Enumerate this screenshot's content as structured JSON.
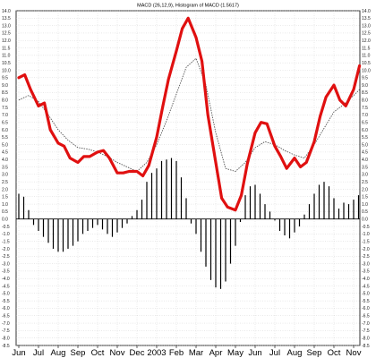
{
  "chart_data": {
    "type": "line",
    "title": "MACD (26,12,9), Histogram of MACD (1.5617)",
    "x_labels": [
      "Jun",
      "Jul",
      "Aug",
      "Sep",
      "Oct",
      "Nov",
      "Dec",
      "2003",
      "Feb",
      "Mar",
      "Apr",
      "May",
      "Jun",
      "Jul",
      "Aug",
      "Sep",
      "Oct",
      "Nov"
    ],
    "y_ticks": [
      "14.0",
      "13.5",
      "13.0",
      "12.5",
      "12.0",
      "11.5",
      "11.0",
      "10.5",
      "10.0",
      "9.5",
      "9.0",
      "8.5",
      "8.0",
      "7.5",
      "7.0",
      "6.5",
      "6.0",
      "5.5",
      "5.0",
      "4.5",
      "4.0",
      "3.5",
      "3.0",
      "2.5",
      "2.0",
      "1.5",
      "1.0",
      "0.5",
      "0.0",
      "-0.5",
      "-1.0",
      "-1.5",
      "-2.0",
      "-2.5",
      "-3.0",
      "-3.5",
      "-4.0",
      "-4.5",
      "-5.0",
      "-5.5",
      "-6.0",
      "-6.5",
      "-7.0",
      "-7.5",
      "-8.0",
      "-8.5"
    ],
    "ylim": [
      -8.5,
      14.0
    ],
    "grid": true,
    "colors": {
      "macd": "#e01010",
      "signal": "#555555",
      "histogram": "#000000",
      "grid": "#c8c8c8"
    },
    "series": [
      {
        "style": "thick-red-line",
        "x": [
          0,
          0.3,
          0.6,
          1,
          1.3,
          1.6,
          2,
          2.3,
          2.6,
          3,
          3.3,
          3.6,
          4,
          4.3,
          4.6,
          5,
          5.3,
          5.6,
          6,
          6.3,
          6.6,
          7,
          7.3,
          7.6,
          8,
          8.3,
          8.6,
          9,
          9.3,
          9.6,
          10,
          10.3,
          10.6,
          11,
          11.3,
          11.6,
          12,
          12.3,
          12.6,
          13,
          13.3,
          13.6,
          14,
          14.3,
          14.6,
          15,
          15.3,
          15.6,
          16,
          16.3,
          16.6,
          17,
          17.3
        ],
        "values": [
          9.5,
          9.7,
          8.7,
          7.6,
          7.8,
          6.0,
          5.1,
          4.9,
          4.1,
          3.8,
          4.2,
          4.2,
          4.5,
          4.6,
          4.1,
          3.1,
          3.1,
          3.2,
          3.2,
          2.9,
          3.6,
          5.5,
          7.5,
          9.4,
          11.3,
          12.8,
          13.5,
          12.2,
          10.6,
          7.0,
          3.8,
          1.4,
          0.8,
          0.6,
          1.6,
          3.7,
          5.8,
          6.5,
          6.4,
          4.9,
          4.2,
          3.4,
          4.1,
          3.5,
          3.8,
          5.2,
          6.9,
          8.2,
          9.0,
          8.0,
          7.6,
          8.7,
          10.3
        ]
      },
      {
        "style": "dotted-grey-line",
        "x": [
          0,
          0.5,
          1,
          1.5,
          2,
          2.5,
          3,
          3.5,
          4,
          4.5,
          5,
          5.5,
          6,
          6.5,
          7,
          7.5,
          8,
          8.5,
          9,
          9.5,
          10,
          10.5,
          11,
          11.5,
          12,
          12.5,
          13,
          13.5,
          14,
          14.5,
          15,
          15.5,
          16,
          16.5,
          17,
          17.3
        ],
        "values": [
          8.0,
          8.3,
          7.9,
          7.0,
          6.0,
          5.3,
          4.8,
          4.7,
          4.5,
          4.2,
          3.8,
          3.5,
          3.2,
          3.8,
          5.0,
          6.6,
          8.4,
          10.2,
          10.8,
          9.0,
          5.8,
          3.4,
          3.2,
          3.8,
          4.8,
          5.2,
          5.0,
          4.6,
          4.3,
          4.1,
          5.0,
          6.1,
          7.2,
          7.7,
          8.3,
          8.7
        ]
      },
      {
        "style": "histogram-bars",
        "x": [
          0,
          0.25,
          0.5,
          0.75,
          1,
          1.25,
          1.5,
          1.75,
          2,
          2.25,
          2.5,
          2.75,
          3,
          3.25,
          3.5,
          3.75,
          4,
          4.25,
          4.5,
          4.75,
          5,
          5.25,
          5.5,
          5.75,
          6,
          6.25,
          6.5,
          6.75,
          7,
          7.25,
          7.5,
          7.75,
          8,
          8.25,
          8.5,
          8.75,
          9,
          9.25,
          9.5,
          9.75,
          10,
          10.25,
          10.5,
          10.75,
          11,
          11.25,
          11.5,
          11.75,
          12,
          12.25,
          12.5,
          12.75,
          13,
          13.25,
          13.5,
          13.75,
          14,
          14.25,
          14.5,
          14.75,
          15,
          15.25,
          15.5,
          15.75,
          16,
          16.25,
          16.5,
          16.75,
          17,
          17.25
        ],
        "values": [
          1.7,
          1.5,
          0.6,
          -0.4,
          -0.8,
          -1.2,
          -1.6,
          -2.0,
          -2.2,
          -2.2,
          -2.0,
          -1.8,
          -1.5,
          -1.0,
          -0.8,
          -0.6,
          -0.4,
          -0.7,
          -1.0,
          -1.2,
          -0.9,
          -0.6,
          -0.3,
          0.2,
          0.6,
          1.3,
          2.5,
          3.1,
          3.4,
          3.9,
          4.0,
          4.1,
          3.9,
          2.8,
          1.4,
          -0.3,
          -1.0,
          -2.2,
          -3.2,
          -4.1,
          -4.6,
          -4.7,
          -4.2,
          -3.0,
          -1.8,
          -0.2,
          1.6,
          2.2,
          2.3,
          1.7,
          1.0,
          0.5,
          -0.1,
          -0.8,
          -1.1,
          -1.3,
          -0.9,
          -0.5,
          0.3,
          1.0,
          1.7,
          2.3,
          2.5,
          2.2,
          1.4,
          0.7,
          1.1,
          1.0,
          1.3,
          1.6
        ]
      }
    ]
  }
}
